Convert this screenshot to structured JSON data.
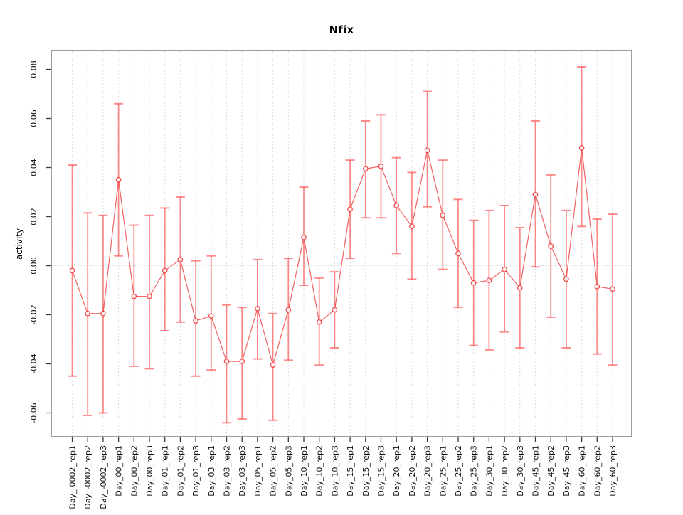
{
  "chart_data": {
    "type": "line",
    "title": "Nfix",
    "ylabel": "activity",
    "xlabel": "",
    "ylim": [
      -0.0785,
      0.0865
    ],
    "yticks": [
      0.08,
      0.06,
      0.04,
      0.02,
      0.0,
      -0.02,
      -0.04,
      -0.06
    ],
    "ytick_labels": [
      "0.08",
      "0.06",
      "0.04",
      "0.02",
      "0.00",
      "-0.02",
      "-0.04",
      "-0.06"
    ],
    "grid": "vertical dotted gridline at every category; dotted horizontal line at y=0",
    "legend": "none",
    "categories": [
      "Day_-0002_rep1",
      "Day_-0002_rep2",
      "Day_-0002_rep3",
      "Day_00_rep1",
      "Day_00_rep2",
      "Day_00_rep3",
      "Day_01_rep1",
      "Day_01_rep2",
      "Day_01_rep3",
      "Day_03_rep1",
      "Day_03_rep2",
      "Day_03_rep3",
      "Day_05_rep1",
      "Day_05_rep2",
      "Day_05_rep3",
      "Day_10_rep1",
      "Day_10_rep2",
      "Day_10_rep3",
      "Day_15_rep1",
      "Day_15_rep2",
      "Day_15_rep3",
      "Day_20_rep1",
      "Day_20_rep2",
      "Day_20_rep3",
      "Day_25_rep1",
      "Day_25_rep2",
      "Day_25_rep3",
      "Day_30_rep1",
      "Day_30_rep2",
      "Day_30_rep3",
      "Day_45_rep1",
      "Day_45_rep2",
      "Day_45_rep3",
      "Day_60_rep1",
      "Day_60_rep2",
      "Day_60_rep3"
    ],
    "series": [
      {
        "name": "activity mean with error bars",
        "values": [
          -0.002,
          -0.0195,
          -0.0195,
          0.035,
          -0.0125,
          -0.0125,
          -0.002,
          0.0025,
          -0.0225,
          -0.0205,
          -0.039,
          -0.039,
          -0.0175,
          -0.0405,
          -0.018,
          0.0115,
          -0.023,
          -0.018,
          0.023,
          0.0395,
          0.0405,
          0.0245,
          0.016,
          0.047,
          0.0205,
          0.005,
          -0.007,
          -0.006,
          -0.0015,
          -0.009,
          0.029,
          0.008,
          -0.0055,
          0.048,
          -0.0085,
          -0.0095
        ],
        "upper": [
          0.041,
          0.0215,
          0.0205,
          0.066,
          0.0165,
          0.0205,
          0.0235,
          0.028,
          0.002,
          0.004,
          -0.016,
          -0.017,
          0.0025,
          -0.0195,
          0.003,
          0.032,
          -0.005,
          -0.0025,
          0.043,
          0.059,
          0.0615,
          0.044,
          0.038,
          0.071,
          0.043,
          0.027,
          0.0185,
          0.0225,
          0.0245,
          0.0155,
          0.059,
          0.037,
          0.0225,
          0.081,
          0.019,
          0.021
        ],
        "lower": [
          -0.045,
          -0.061,
          -0.06,
          0.004,
          -0.041,
          -0.042,
          -0.0265,
          -0.023,
          -0.045,
          -0.0425,
          -0.064,
          -0.0625,
          -0.038,
          -0.063,
          -0.0385,
          -0.008,
          -0.0405,
          -0.0335,
          0.003,
          0.0195,
          0.0195,
          0.005,
          -0.0055,
          0.024,
          -0.0015,
          -0.017,
          -0.0325,
          -0.0343,
          -0.027,
          -0.0335,
          -0.0005,
          -0.021,
          -0.0335,
          0.016,
          -0.036,
          -0.0405
        ]
      }
    ],
    "colors": {
      "errorbar": "#ff4646",
      "point_line": "#ef3b3b",
      "grid": "#d4d4d4",
      "box": "#7d7d7d",
      "tick": "#3a3a3a",
      "text": "#111111",
      "background": "#ffffff"
    }
  }
}
